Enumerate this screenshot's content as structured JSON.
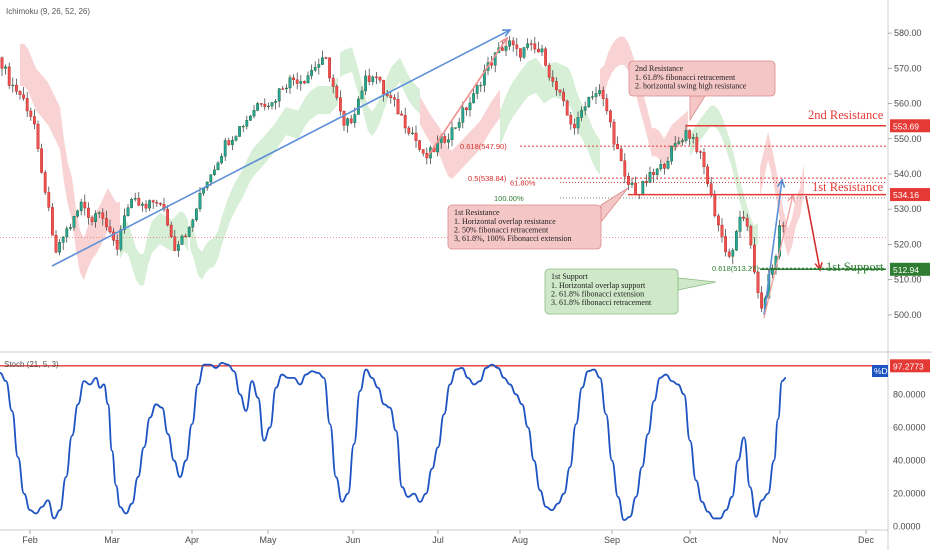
{
  "chart_data": {
    "type": "line",
    "title": "",
    "indicator_top": "Ichimoku (9, 26, 52, 26)",
    "indicator_bottom": "Stoch (21, 5, 3)",
    "x_tick_labels": [
      "Feb",
      "Mar",
      "Apr",
      "May",
      "Jun",
      "Jul",
      "Aug",
      "Sep",
      "Oct",
      "Nov",
      "Dec"
    ],
    "price_axis": {
      "ticks": [
        "580.00",
        "570.00",
        "560.00",
        "550.00",
        "540.00",
        "530.00",
        "520.00",
        "510.00",
        "500.00"
      ],
      "ylim": [
        494,
        586
      ]
    },
    "stoch_axis": {
      "ticks": [
        "80.0000",
        "60.0000",
        "40.0000",
        "20.0000",
        "0.0000"
      ],
      "ylim": [
        -2,
        102
      ]
    },
    "price_series": [
      {
        "x": 0,
        "y": 573
      },
      {
        "x": 10,
        "y": 566
      },
      {
        "x": 22,
        "y": 562
      },
      {
        "x": 34,
        "y": 555
      },
      {
        "x": 40,
        "y": 541
      },
      {
        "x": 46,
        "y": 535
      },
      {
        "x": 52,
        "y": 522
      },
      {
        "x": 57,
        "y": 517
      },
      {
        "x": 64,
        "y": 523
      },
      {
        "x": 72,
        "y": 526
      },
      {
        "x": 82,
        "y": 532
      },
      {
        "x": 92,
        "y": 527
      },
      {
        "x": 100,
        "y": 531
      },
      {
        "x": 110,
        "y": 522
      },
      {
        "x": 117,
        "y": 519
      },
      {
        "x": 124,
        "y": 529
      },
      {
        "x": 134,
        "y": 532
      },
      {
        "x": 146,
        "y": 530
      },
      {
        "x": 156,
        "y": 533
      },
      {
        "x": 166,
        "y": 528
      },
      {
        "x": 174,
        "y": 519
      },
      {
        "x": 182,
        "y": 523
      },
      {
        "x": 190,
        "y": 524
      },
      {
        "x": 197,
        "y": 531
      },
      {
        "x": 206,
        "y": 538
      },
      {
        "x": 216,
        "y": 543
      },
      {
        "x": 226,
        "y": 549
      },
      {
        "x": 236,
        "y": 552
      },
      {
        "x": 248,
        "y": 556
      },
      {
        "x": 260,
        "y": 561
      },
      {
        "x": 272,
        "y": 560
      },
      {
        "x": 282,
        "y": 565
      },
      {
        "x": 292,
        "y": 567
      },
      {
        "x": 304,
        "y": 567
      },
      {
        "x": 316,
        "y": 571
      },
      {
        "x": 326,
        "y": 572
      },
      {
        "x": 334,
        "y": 564
      },
      {
        "x": 344,
        "y": 553
      },
      {
        "x": 352,
        "y": 556
      },
      {
        "x": 364,
        "y": 566
      },
      {
        "x": 374,
        "y": 569
      },
      {
        "x": 384,
        "y": 563
      },
      {
        "x": 394,
        "y": 560
      },
      {
        "x": 404,
        "y": 555
      },
      {
        "x": 414,
        "y": 551
      },
      {
        "x": 424,
        "y": 544
      },
      {
        "x": 434,
        "y": 547
      },
      {
        "x": 444,
        "y": 550
      },
      {
        "x": 454,
        "y": 553
      },
      {
        "x": 464,
        "y": 558
      },
      {
        "x": 474,
        "y": 562
      },
      {
        "x": 484,
        "y": 569
      },
      {
        "x": 494,
        "y": 573
      },
      {
        "x": 502,
        "y": 576
      },
      {
        "x": 510,
        "y": 577
      },
      {
        "x": 518,
        "y": 574
      },
      {
        "x": 528,
        "y": 576
      },
      {
        "x": 536,
        "y": 575
      },
      {
        "x": 544,
        "y": 574
      },
      {
        "x": 552,
        "y": 566
      },
      {
        "x": 560,
        "y": 562
      },
      {
        "x": 568,
        "y": 556
      },
      {
        "x": 576,
        "y": 553
      },
      {
        "x": 584,
        "y": 560
      },
      {
        "x": 592,
        "y": 563
      },
      {
        "x": 600,
        "y": 563
      },
      {
        "x": 608,
        "y": 557
      },
      {
        "x": 614,
        "y": 550
      },
      {
        "x": 620,
        "y": 544
      },
      {
        "x": 626,
        "y": 537
      },
      {
        "x": 632,
        "y": 537
      },
      {
        "x": 638,
        "y": 534
      },
      {
        "x": 646,
        "y": 538
      },
      {
        "x": 654,
        "y": 540
      },
      {
        "x": 662,
        "y": 542
      },
      {
        "x": 670,
        "y": 546
      },
      {
        "x": 678,
        "y": 549
      },
      {
        "x": 686,
        "y": 552
      },
      {
        "x": 694,
        "y": 550
      },
      {
        "x": 700,
        "y": 545
      },
      {
        "x": 706,
        "y": 540
      },
      {
        "x": 712,
        "y": 532
      },
      {
        "x": 718,
        "y": 526
      },
      {
        "x": 724,
        "y": 520
      },
      {
        "x": 730,
        "y": 516
      },
      {
        "x": 736,
        "y": 522
      },
      {
        "x": 742,
        "y": 530
      },
      {
        "x": 748,
        "y": 523
      },
      {
        "x": 754,
        "y": 513
      },
      {
        "x": 760,
        "y": 504
      },
      {
        "x": 764,
        "y": 501
      },
      {
        "x": 768,
        "y": 510
      },
      {
        "x": 774,
        "y": 514
      },
      {
        "x": 778,
        "y": 521
      },
      {
        "x": 782,
        "y": 528
      },
      {
        "x": 786,
        "y": 523
      }
    ],
    "stoch_series": [
      {
        "x": 0,
        "y": 93
      },
      {
        "x": 6,
        "y": 88
      },
      {
        "x": 12,
        "y": 70
      },
      {
        "x": 18,
        "y": 42
      },
      {
        "x": 24,
        "y": 20
      },
      {
        "x": 30,
        "y": 10
      },
      {
        "x": 36,
        "y": 8
      },
      {
        "x": 42,
        "y": 12
      },
      {
        "x": 48,
        "y": 16
      },
      {
        "x": 54,
        "y": 5
      },
      {
        "x": 60,
        "y": 10
      },
      {
        "x": 66,
        "y": 30
      },
      {
        "x": 72,
        "y": 55
      },
      {
        "x": 78,
        "y": 74
      },
      {
        "x": 84,
        "y": 88
      },
      {
        "x": 90,
        "y": 86
      },
      {
        "x": 96,
        "y": 90
      },
      {
        "x": 100,
        "y": 84
      },
      {
        "x": 104,
        "y": 86
      },
      {
        "x": 108,
        "y": 74
      },
      {
        "x": 112,
        "y": 46
      },
      {
        "x": 116,
        "y": 25
      },
      {
        "x": 120,
        "y": 12
      },
      {
        "x": 126,
        "y": 8
      },
      {
        "x": 132,
        "y": 14
      },
      {
        "x": 138,
        "y": 30
      },
      {
        "x": 144,
        "y": 48
      },
      {
        "x": 150,
        "y": 66
      },
      {
        "x": 156,
        "y": 74
      },
      {
        "x": 162,
        "y": 72
      },
      {
        "x": 168,
        "y": 56
      },
      {
        "x": 174,
        "y": 40
      },
      {
        "x": 180,
        "y": 30
      },
      {
        "x": 186,
        "y": 40
      },
      {
        "x": 192,
        "y": 62
      },
      {
        "x": 198,
        "y": 86
      },
      {
        "x": 204,
        "y": 98
      },
      {
        "x": 210,
        "y": 98
      },
      {
        "x": 216,
        "y": 96
      },
      {
        "x": 222,
        "y": 99
      },
      {
        "x": 228,
        "y": 98
      },
      {
        "x": 234,
        "y": 94
      },
      {
        "x": 240,
        "y": 80
      },
      {
        "x": 246,
        "y": 70
      },
      {
        "x": 252,
        "y": 88
      },
      {
        "x": 258,
        "y": 78
      },
      {
        "x": 264,
        "y": 52
      },
      {
        "x": 270,
        "y": 60
      },
      {
        "x": 276,
        "y": 84
      },
      {
        "x": 282,
        "y": 92
      },
      {
        "x": 288,
        "y": 90
      },
      {
        "x": 294,
        "y": 90
      },
      {
        "x": 300,
        "y": 86
      },
      {
        "x": 306,
        "y": 92
      },
      {
        "x": 312,
        "y": 94
      },
      {
        "x": 318,
        "y": 93
      },
      {
        "x": 324,
        "y": 90
      },
      {
        "x": 330,
        "y": 62
      },
      {
        "x": 336,
        "y": 30
      },
      {
        "x": 342,
        "y": 15
      },
      {
        "x": 348,
        "y": 20
      },
      {
        "x": 354,
        "y": 50
      },
      {
        "x": 360,
        "y": 82
      },
      {
        "x": 366,
        "y": 95
      },
      {
        "x": 372,
        "y": 90
      },
      {
        "x": 378,
        "y": 84
      },
      {
        "x": 384,
        "y": 74
      },
      {
        "x": 390,
        "y": 72
      },
      {
        "x": 396,
        "y": 58
      },
      {
        "x": 402,
        "y": 24
      },
      {
        "x": 408,
        "y": 18
      },
      {
        "x": 414,
        "y": 20
      },
      {
        "x": 420,
        "y": 15
      },
      {
        "x": 426,
        "y": 20
      },
      {
        "x": 432,
        "y": 35
      },
      {
        "x": 438,
        "y": 48
      },
      {
        "x": 444,
        "y": 68
      },
      {
        "x": 450,
        "y": 86
      },
      {
        "x": 456,
        "y": 95
      },
      {
        "x": 462,
        "y": 96
      },
      {
        "x": 468,
        "y": 90
      },
      {
        "x": 474,
        "y": 86
      },
      {
        "x": 480,
        "y": 88
      },
      {
        "x": 486,
        "y": 96
      },
      {
        "x": 492,
        "y": 98
      },
      {
        "x": 498,
        "y": 96
      },
      {
        "x": 504,
        "y": 90
      },
      {
        "x": 510,
        "y": 86
      },
      {
        "x": 516,
        "y": 80
      },
      {
        "x": 522,
        "y": 74
      },
      {
        "x": 528,
        "y": 60
      },
      {
        "x": 534,
        "y": 40
      },
      {
        "x": 540,
        "y": 22
      },
      {
        "x": 546,
        "y": 12
      },
      {
        "x": 552,
        "y": 10
      },
      {
        "x": 558,
        "y": 14
      },
      {
        "x": 564,
        "y": 20
      },
      {
        "x": 570,
        "y": 36
      },
      {
        "x": 576,
        "y": 62
      },
      {
        "x": 582,
        "y": 84
      },
      {
        "x": 588,
        "y": 94
      },
      {
        "x": 594,
        "y": 95
      },
      {
        "x": 600,
        "y": 90
      },
      {
        "x": 606,
        "y": 68
      },
      {
        "x": 612,
        "y": 40
      },
      {
        "x": 618,
        "y": 18
      },
      {
        "x": 624,
        "y": 4
      },
      {
        "x": 630,
        "y": 6
      },
      {
        "x": 636,
        "y": 18
      },
      {
        "x": 642,
        "y": 36
      },
      {
        "x": 648,
        "y": 56
      },
      {
        "x": 654,
        "y": 76
      },
      {
        "x": 660,
        "y": 90
      },
      {
        "x": 666,
        "y": 92
      },
      {
        "x": 672,
        "y": 88
      },
      {
        "x": 678,
        "y": 86
      },
      {
        "x": 684,
        "y": 80
      },
      {
        "x": 690,
        "y": 52
      },
      {
        "x": 696,
        "y": 28
      },
      {
        "x": 702,
        "y": 15
      },
      {
        "x": 708,
        "y": 9
      },
      {
        "x": 714,
        "y": 5
      },
      {
        "x": 720,
        "y": 5
      },
      {
        "x": 726,
        "y": 10
      },
      {
        "x": 732,
        "y": 18
      },
      {
        "x": 738,
        "y": 40
      },
      {
        "x": 744,
        "y": 54
      },
      {
        "x": 750,
        "y": 24
      },
      {
        "x": 756,
        "y": 6
      },
      {
        "x": 762,
        "y": 16
      },
      {
        "x": 768,
        "y": 20
      },
      {
        "x": 774,
        "y": 40
      },
      {
        "x": 778,
        "y": 65
      },
      {
        "x": 782,
        "y": 88
      },
      {
        "x": 786,
        "y": 90
      }
    ],
    "levels": [
      {
        "name": "2nd Resistance",
        "price": 553.69,
        "color": "#e53935"
      },
      {
        "name": "1st Resistance",
        "price": 534.16,
        "color": "#e53935"
      },
      {
        "name": "1st Support",
        "price": 512.94,
        "color": "#2e7d32"
      }
    ],
    "stoch_level": {
      "label": "97.2773",
      "value": 97.2773
    },
    "fib_labels": [
      {
        "text": "0.618(547.90)",
        "price": 547.9
      },
      {
        "text": "0.5(538.84)",
        "price": 538.84
      },
      {
        "text": "61.80%",
        "price": 537.6
      },
      {
        "text": "100.00%",
        "price": 533.2
      },
      {
        "text": "0.618(513.27)",
        "price": 513.27
      }
    ],
    "stoch_tag": "%D",
    "notes": [
      {
        "title": "2nd Resistance",
        "lines": [
          "1. 61.8% fibonacci retracement",
          "2. horizontal swing high resistance"
        ]
      },
      {
        "title": "1st Resistance",
        "lines": [
          "1. Horizontal overlap resistance",
          "2. 50% fibonacci retracement",
          "3, 61.8%, 100% Fibonacci extension"
        ]
      },
      {
        "title": "1st Support",
        "lines": [
          "1. Horizontal overlap support",
          "2. 61.8% fibonacci extension",
          "3. 61.8% fibonacci retracement"
        ]
      }
    ]
  }
}
